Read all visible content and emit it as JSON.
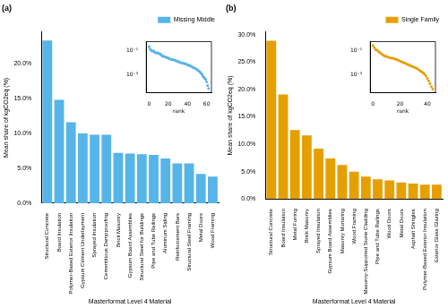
{
  "chart_data": [
    {
      "type": "bar",
      "title": "(a)",
      "x_label": "Masterformat Level 4 Material",
      "y_label": "Mean share of kgCO2eq (%)",
      "categories": [
        "Structural Concrete",
        "Board Insulation",
        "Polymer-Based Exterior Insulation",
        "Gypsum Cement Underlayment",
        "Sprayed Insulation",
        "Cementitious Dampproofing",
        "Brick Masonry",
        "Gypsum Board Assemblies",
        "Structural Steel for Buildings",
        "Pipe and Tube Railings",
        "Aluminum Siding",
        "Reinforcement Bars",
        "Structural Steel Framing",
        "Metal Doors",
        "Wood Framing"
      ],
      "series": [
        {
          "name": "Missing Middle",
          "color": "#56b4e9",
          "values": [
            23.3,
            14.8,
            11.6,
            10.0,
            9.8,
            9.8,
            7.2,
            7.1,
            7.0,
            6.9,
            6.4,
            5.7,
            5.7,
            4.2,
            3.8
          ]
        }
      ],
      "ylim": [
        0,
        24.5
      ],
      "yticks": [
        {
          "value": 0,
          "label": "0.0%"
        },
        {
          "value": 5,
          "label": "5.0%"
        },
        {
          "value": 10,
          "label": "10.0%"
        },
        {
          "value": 15,
          "label": "15.0%"
        },
        {
          "value": 20,
          "label": "20.0%"
        }
      ],
      "grid": false,
      "legend": "upper right",
      "inset": {
        "type": "scatter",
        "x_label": "rank",
        "log": "y",
        "marker": "circle",
        "color": "#56b4e9",
        "x": [
          0,
          1,
          2,
          3,
          4,
          5,
          6,
          7,
          8,
          9,
          10,
          11,
          12,
          13,
          14,
          15,
          16,
          17,
          18,
          19,
          20,
          21,
          22,
          23,
          24,
          25,
          26,
          27,
          28,
          29,
          30,
          31,
          32,
          33,
          34,
          35,
          36,
          37,
          38,
          39,
          40,
          41,
          42,
          43,
          44,
          45,
          46,
          47,
          48,
          49,
          50,
          51,
          52,
          53,
          54,
          55,
          56,
          57,
          58,
          59,
          60,
          61,
          62
        ],
        "values": [
          0.233,
          0.148,
          0.116,
          0.1,
          0.098,
          0.098,
          0.072,
          0.071,
          0.07,
          0.069,
          0.064,
          0.057,
          0.057,
          0.042,
          0.038,
          0.035,
          0.033,
          0.031,
          0.029,
          0.027,
          0.025,
          0.023,
          0.021,
          0.02,
          0.019,
          0.018,
          0.017,
          0.016,
          0.015,
          0.014,
          0.013,
          0.012,
          0.011,
          0.0105,
          0.01,
          0.0095,
          0.009,
          0.0085,
          0.008,
          0.0075,
          0.007,
          0.0065,
          0.006,
          0.0055,
          0.005,
          0.0045,
          0.004,
          0.0037,
          0.0034,
          0.003,
          0.0027,
          0.0024,
          0.002,
          0.0017,
          0.0014,
          0.0011,
          0.0008,
          0.0006,
          0.0005,
          0.0004,
          0.00025,
          0.00012,
          7e-05
        ],
        "xlim": [
          -3,
          65
        ],
        "xticks": [
          0,
          20,
          40,
          60
        ],
        "ylim": [
          3e-05,
          0.6
        ],
        "yticks": [
          {
            "value": 0.1,
            "label": "10⁻¹"
          },
          {
            "value": 0.001,
            "label": "10⁻³"
          }
        ],
        "grid": false
      }
    },
    {
      "type": "bar",
      "title": "(b)",
      "x_label": "Masterformat Level 4 Material",
      "y_label": "Mean share of kgCO2eq (%)",
      "categories": [
        "Structural Concrete",
        "Board Insulation",
        "Metal Furring",
        "Brick Masonry",
        "Sprayed Insulation",
        "Gypsum Board Assemblies",
        "Masonry Mortaring",
        "Wood Framing",
        "Masonry-Supported Stone Cladding",
        "Pipe and Tube Railings",
        "Wood Doors",
        "Metal Doors",
        "Asphalt Shingles",
        "Polymer-Based Exterior Insulation",
        "Exterior Glass Glazing"
      ],
      "series": [
        {
          "name": "Single Family",
          "color": "#e69f00",
          "values": [
            28.9,
            19.1,
            12.6,
            11.6,
            9.2,
            7.4,
            6.2,
            5.0,
            4.1,
            3.6,
            3.4,
            3.0,
            2.8,
            2.6,
            2.6
          ]
        }
      ],
      "ylim": [
        0,
        30.5
      ],
      "yticks": [
        {
          "value": 0,
          "label": "0.0%"
        },
        {
          "value": 5,
          "label": "5.0%"
        },
        {
          "value": 10,
          "label": "10.0%"
        },
        {
          "value": 15,
          "label": "15.0%"
        },
        {
          "value": 20,
          "label": "20.0%"
        },
        {
          "value": 25,
          "label": "25.0%"
        },
        {
          "value": 30,
          "label": "30.0%"
        }
      ],
      "grid": false,
      "legend": "upper right",
      "inset": {
        "type": "scatter",
        "x_label": "rank",
        "log": "y",
        "marker": "circle",
        "color": "#e69f00",
        "x": [
          0,
          1,
          2,
          3,
          4,
          5,
          6,
          7,
          8,
          9,
          10,
          11,
          12,
          13,
          14,
          15,
          16,
          17,
          18,
          19,
          20,
          21,
          22,
          23,
          24,
          25,
          26,
          27,
          28,
          29,
          30,
          31,
          32,
          33,
          34,
          35,
          36,
          37,
          38,
          39,
          40,
          41,
          42,
          43,
          44
        ],
        "values": [
          0.289,
          0.191,
          0.126,
          0.116,
          0.092,
          0.074,
          0.062,
          0.05,
          0.041,
          0.036,
          0.034,
          0.03,
          0.028,
          0.026,
          0.026,
          0.024,
          0.022,
          0.02,
          0.018,
          0.016,
          0.014,
          0.012,
          0.011,
          0.01,
          0.009,
          0.008,
          0.007,
          0.006,
          0.0055,
          0.005,
          0.0045,
          0.004,
          0.0035,
          0.003,
          0.0025,
          0.002,
          0.0017,
          0.0014,
          0.0011,
          0.0008,
          0.0005,
          0.0003,
          0.00018,
          0.0001,
          6e-05
        ],
        "xlim": [
          -2,
          46
        ],
        "xticks": [
          0,
          20,
          40
        ],
        "ylim": [
          3e-05,
          0.6
        ],
        "yticks": [
          {
            "value": 0.1,
            "label": "10⁻¹"
          },
          {
            "value": 0.001,
            "label": "10⁻³"
          }
        ],
        "grid": false
      }
    }
  ]
}
